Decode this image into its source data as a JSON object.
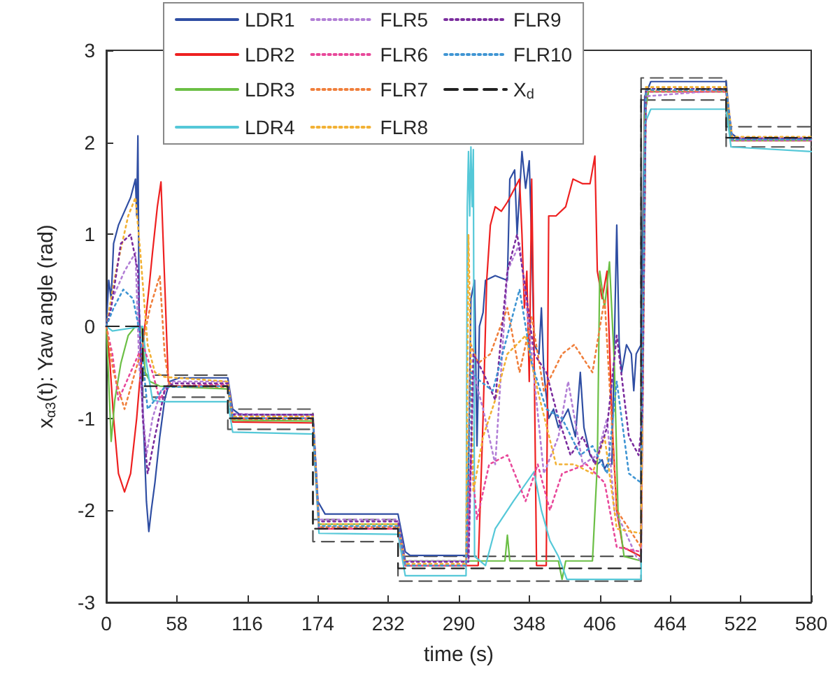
{
  "chart_data": {
    "type": "line",
    "xlabel": "time (s)",
    "ylabel": "x$_{α3}$(t): Yaw angle (rad)",
    "xlim": [
      0,
      580
    ],
    "xticks": [
      0,
      58,
      116,
      174,
      232,
      290,
      348,
      406,
      464,
      522,
      580
    ],
    "ylim": [
      -3,
      3
    ],
    "yticks": [
      -3,
      -2,
      -1,
      0,
      1,
      2,
      3
    ],
    "grid": false,
    "legend": "top",
    "marker": "none",
    "series": [
      {
        "name": "LDR1",
        "color": "#2f4ea3",
        "line_style": "solid",
        "x": [
          0,
          2,
          4,
          6,
          10,
          15,
          20,
          24,
          25,
          26,
          27,
          29,
          31,
          33,
          35,
          37,
          40,
          44,
          48,
          52,
          60,
          100,
          104,
          110,
          170,
          174,
          180,
          240,
          246,
          250,
          297,
          300,
          303,
          305,
          307,
          310,
          312,
          320,
          330,
          332,
          336,
          338,
          342,
          345,
          348,
          350,
          352,
          356,
          358,
          360,
          364,
          368,
          372,
          380,
          386,
          390,
          393,
          398,
          404,
          408,
          410,
          412,
          416,
          420,
          422,
          424,
          428,
          432,
          434,
          436,
          440,
          443,
          448,
          510,
          514,
          520,
          580
        ],
        "values": [
          0,
          0.5,
          0.3,
          0.9,
          1.1,
          1.25,
          1.4,
          1.6,
          1.2,
          2.07,
          0.2,
          -0.5,
          -1.2,
          -1.9,
          -2.23,
          -2.0,
          -1.7,
          -1.2,
          -0.8,
          -0.6,
          -0.56,
          -0.56,
          -0.9,
          -0.96,
          -0.96,
          -1.9,
          -2.04,
          -2.04,
          -2.45,
          -2.49,
          -2.49,
          0.3,
          0.5,
          -1.3,
          0.0,
          0.15,
          0.5,
          0.55,
          0.5,
          1.6,
          1.7,
          1.0,
          1.9,
          1.5,
          1.8,
          0.9,
          -0.2,
          -0.3,
          0.2,
          -0.5,
          -1.0,
          -0.9,
          -1.1,
          -0.9,
          -1.2,
          -0.5,
          -1.1,
          -1.4,
          -1.5,
          -1.45,
          -1.55,
          -1.5,
          -1.5,
          1.1,
          -0.2,
          -0.5,
          -0.2,
          -0.3,
          -0.7,
          -0.3,
          -0.2,
          2.5,
          2.66,
          2.66,
          2.1,
          2.04,
          2.04
        ]
      },
      {
        "name": "LDR2",
        "color": "#ee2020",
        "line_style": "solid",
        "x": [
          0,
          3,
          6,
          10,
          15,
          20,
          25,
          30,
          35,
          38,
          42,
          45,
          48,
          51,
          55,
          100,
          104,
          170,
          175,
          240,
          246,
          306,
          310,
          313,
          316,
          320,
          325,
          330,
          336,
          340,
          342,
          344,
          346,
          348,
          350,
          352,
          354,
          362,
          364,
          370,
          378,
          384,
          392,
          398,
          402,
          404,
          408,
          412,
          416,
          420,
          425,
          440,
          443,
          446,
          510,
          514,
          580
        ],
        "values": [
          0,
          -0.4,
          -1.0,
          -1.6,
          -1.8,
          -1.6,
          -1.0,
          -0.2,
          0.4,
          0.8,
          1.3,
          1.57,
          0.5,
          -0.6,
          -0.65,
          -0.65,
          -1.04,
          -1.05,
          -2.2,
          -2.2,
          -2.6,
          -2.6,
          -1.0,
          0.5,
          1.1,
          1.3,
          1.25,
          1.35,
          1.5,
          1.6,
          1.0,
          0.2,
          0.6,
          -0.6,
          1.6,
          -0.3,
          -2.6,
          -2.6,
          1.2,
          1.2,
          1.3,
          1.6,
          1.55,
          1.55,
          1.85,
          0.6,
          0.3,
          0.6,
          -1.0,
          -2.0,
          -2.4,
          -2.5,
          2.3,
          2.55,
          2.55,
          2.02,
          2.02
        ]
      },
      {
        "name": "LDR3",
        "color": "#6bbf45",
        "line_style": "solid",
        "x": [
          0,
          2,
          4,
          7,
          12,
          18,
          24,
          29,
          32,
          36,
          44,
          100,
          104,
          170,
          175,
          240,
          246,
          328,
          330,
          332,
          372,
          375,
          378,
          400,
          404,
          406,
          410,
          414,
          418,
          421,
          426,
          440,
          443,
          446,
          510,
          514,
          580
        ],
        "values": [
          0,
          -0.6,
          -1.25,
          -0.8,
          -0.4,
          -0.1,
          0,
          0,
          -0.5,
          -0.6,
          -0.65,
          -0.68,
          -1.02,
          -1.03,
          -2.15,
          -2.15,
          -2.55,
          -2.55,
          -2.27,
          -2.55,
          -2.55,
          -2.75,
          -2.55,
          -2.55,
          -1.5,
          0.6,
          0.2,
          0.7,
          -0.4,
          -2.0,
          -2.5,
          -2.55,
          2.3,
          2.55,
          2.55,
          2.02,
          2.02
        ]
      },
      {
        "name": "LDR4",
        "color": "#55c8d8",
        "line_style": "solid",
        "x": [
          0,
          5,
          30,
          33,
          38,
          45,
          100,
          104,
          170,
          175,
          240,
          246,
          296,
          297,
          298,
          299,
          300,
          301,
          302,
          303,
          312,
          320,
          335,
          352,
          358,
          365,
          372,
          379,
          440,
          443,
          448,
          510,
          514,
          580
        ],
        "values": [
          0,
          -0.05,
          0,
          -0.4,
          -0.8,
          -0.82,
          -0.82,
          -1.15,
          -1.17,
          -2.25,
          -2.26,
          -2.71,
          -2.71,
          1.3,
          1.9,
          1.2,
          1.95,
          1.3,
          1.92,
          -2.5,
          -2.6,
          -2.2,
          -1.9,
          -1.58,
          -2.0,
          -2.33,
          -2.5,
          -2.75,
          -2.75,
          2.2,
          2.36,
          2.36,
          1.95,
          1.9
        ]
      },
      {
        "name": "FLR5",
        "color": "#b27fd6",
        "line_style": "dotted",
        "x": [
          0,
          5,
          15,
          24,
          27,
          33,
          38,
          45,
          55,
          100,
          104,
          170,
          175,
          240,
          246,
          298,
          302,
          310,
          320,
          330,
          340,
          350,
          360,
          372,
          380,
          392,
          404,
          412,
          418,
          426,
          436,
          440,
          444,
          510,
          515,
          580
        ],
        "values": [
          0,
          0.3,
          0.6,
          0.8,
          -0.4,
          -1.4,
          -1.0,
          -0.7,
          -0.6,
          -0.6,
          -0.95,
          -0.97,
          -2.1,
          -2.1,
          -2.55,
          -2.55,
          -0.5,
          -0.9,
          -1.5,
          0.6,
          0.9,
          -0.3,
          -1.6,
          -1.2,
          -0.6,
          -1.5,
          -1.4,
          -1.0,
          -2.0,
          -2.2,
          -2.5,
          -2.55,
          2.5,
          2.57,
          2.05,
          2.05
        ]
      },
      {
        "name": "FLR6",
        "color": "#e8489a",
        "line_style": "dotted",
        "x": [
          0,
          5,
          10,
          20,
          30,
          38,
          44,
          50,
          100,
          104,
          170,
          175,
          240,
          246,
          296,
          300,
          305,
          315,
          330,
          345,
          355,
          365,
          375,
          395,
          410,
          420,
          440,
          444,
          510,
          515,
          580
        ],
        "values": [
          0,
          -0.3,
          -0.8,
          -0.5,
          -0.2,
          -0.5,
          -0.8,
          -0.65,
          -0.63,
          -1,
          -1,
          -2.2,
          -2.2,
          -2.6,
          -2.6,
          -1.4,
          -2.1,
          -1.5,
          -1.4,
          -1.9,
          -1.5,
          -2.0,
          -1.6,
          -1.5,
          -1.7,
          -2.4,
          -2.45,
          2.55,
          2.55,
          2.02,
          2.02
        ]
      },
      {
        "name": "FLR7",
        "color": "#f07f3c",
        "line_style": "dotted",
        "x": [
          0,
          6,
          15,
          28,
          36,
          44,
          48,
          52,
          100,
          104,
          170,
          175,
          240,
          246,
          296,
          300,
          306,
          316,
          330,
          340,
          350,
          360,
          375,
          385,
          400,
          410,
          420,
          440,
          444,
          510,
          515,
          580
        ],
        "values": [
          0,
          -0.5,
          -0.9,
          -0.3,
          0.2,
          0.55,
          -0.3,
          -0.65,
          -0.66,
          -1.01,
          -1.01,
          -2.18,
          -2.18,
          -2.6,
          -2.6,
          -0.2,
          -0.4,
          -0.3,
          0.2,
          -0.5,
          0.1,
          -0.7,
          -0.3,
          -0.2,
          -0.5,
          0.3,
          -2.0,
          -2.4,
          2.56,
          2.56,
          2.03,
          2.03
        ]
      },
      {
        "name": "FLR8",
        "color": "#f2b134",
        "line_style": "dotted",
        "x": [
          0,
          8,
          18,
          24,
          28,
          34,
          40,
          48,
          100,
          104,
          170,
          175,
          240,
          246,
          296,
          298,
          302,
          310,
          320,
          330,
          345,
          355,
          370,
          385,
          400,
          410,
          420,
          440,
          444,
          510,
          515,
          580
        ],
        "values": [
          0,
          0.6,
          1.2,
          1.4,
          0.8,
          -0.2,
          -0.5,
          -0.55,
          -0.6,
          -0.98,
          -0.98,
          -2.15,
          -2.15,
          -2.58,
          -2.58,
          1.0,
          -1.8,
          -1.2,
          -0.8,
          -0.3,
          -0.1,
          -0.7,
          -1.5,
          -1.5,
          -1.6,
          -1.2,
          -2.2,
          -2.25,
          2.6,
          2.6,
          2.06,
          2.06
        ]
      },
      {
        "name": "FLR9",
        "color": "#7b2d9e",
        "line_style": "dotted",
        "x": [
          0,
          4,
          12,
          20,
          26,
          30,
          34,
          40,
          48,
          55,
          100,
          104,
          170,
          175,
          240,
          246,
          298,
          302,
          310,
          320,
          330,
          338,
          345,
          352,
          362,
          372,
          382,
          392,
          402,
          412,
          420,
          430,
          438,
          441,
          444,
          510,
          515,
          580
        ],
        "values": [
          0,
          0.2,
          0.9,
          1.0,
          0.6,
          -1.0,
          -1.6,
          -1.2,
          -0.7,
          -0.62,
          -0.62,
          -0.96,
          -0.96,
          -2.12,
          -2.12,
          -2.56,
          -2.56,
          -0.3,
          -0.5,
          -0.8,
          0.6,
          1.0,
          0.4,
          -0.3,
          -0.5,
          -1.0,
          -1.4,
          -1.2,
          -1.5,
          -1.1,
          -0.1,
          -1.2,
          -1.4,
          -1.0,
          2.58,
          2.58,
          2.04,
          2.04
        ]
      },
      {
        "name": "FLR10",
        "color": "#3f95d3",
        "line_style": "dotted",
        "x": [
          0,
          6,
          14,
          22,
          28,
          34,
          40,
          48,
          100,
          104,
          170,
          175,
          240,
          246,
          296,
          300,
          308,
          318,
          330,
          340,
          350,
          362,
          375,
          390,
          400,
          412,
          420,
          430,
          440,
          444,
          510,
          515,
          580
        ],
        "values": [
          0,
          0.2,
          0.4,
          0.3,
          -0.1,
          -0.9,
          -0.8,
          -0.66,
          -0.65,
          -1.0,
          -1.0,
          -2.17,
          -2.17,
          -2.6,
          -2.6,
          -0.5,
          -0.6,
          -0.7,
          -0.1,
          0.4,
          -0.4,
          -0.9,
          -1.0,
          -1.4,
          -1.3,
          -1.6,
          -0.6,
          -1.6,
          -1.7,
          2.57,
          2.57,
          2.03,
          2.03
        ]
      },
      {
        "name": "X$_{d}$",
        "color": "#222222",
        "line_style": "dashed",
        "x": [
          0,
          30,
          30,
          100,
          100,
          170,
          170,
          240,
          240,
          440,
          440,
          510,
          510,
          580
        ],
        "values": [
          0,
          0,
          -0.65,
          -0.65,
          -1,
          -1,
          -2.2,
          -2.2,
          -2.63,
          -2.63,
          2.58,
          2.58,
          2.05,
          2.05
        ]
      },
      {
        "color": "#555555",
        "line_style": "dashed",
        "x": [
          0,
          30,
          30,
          100,
          100,
          170,
          170,
          240,
          240,
          440,
          440,
          510,
          510,
          580
        ],
        "values": [
          0,
          0,
          -0.53,
          -0.53,
          -0.9,
          -0.9,
          -2.1,
          -2.1,
          -2.5,
          -2.5,
          2.7,
          2.7,
          2.17,
          2.17
        ]
      },
      {
        "color": "#555555",
        "line_style": "dashed",
        "x": [
          0,
          30,
          30,
          100,
          100,
          170,
          170,
          240,
          240,
          440,
          440,
          510,
          510,
          580
        ],
        "values": [
          0,
          0,
          -0.77,
          -0.77,
          -1.12,
          -1.12,
          -2.34,
          -2.34,
          -2.77,
          -2.77,
          2.46,
          2.46,
          1.95,
          1.95
        ]
      }
    ]
  }
}
